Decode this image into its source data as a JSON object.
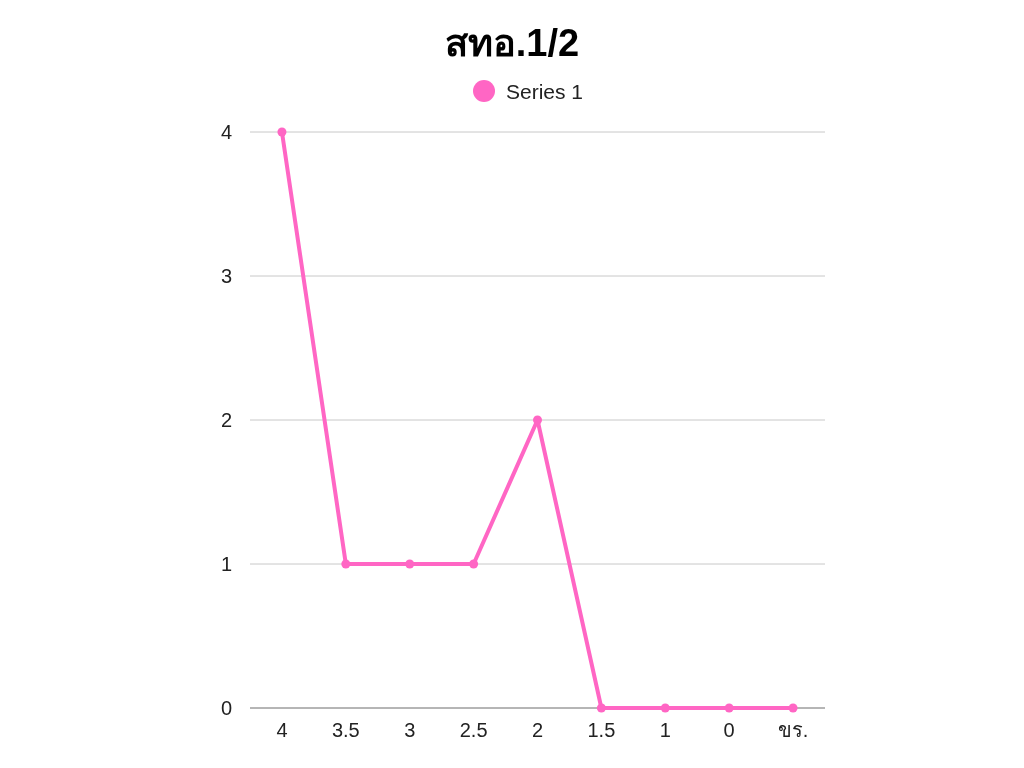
{
  "chart_data": {
    "type": "line",
    "title": "สทอ.1/2",
    "categories": [
      "4",
      "3.5",
      "3",
      "2.5",
      "2",
      "1.5",
      "1",
      "0",
      "ขร."
    ],
    "series": [
      {
        "name": "Series 1",
        "color": "#ff66c4",
        "values": [
          4,
          1,
          1,
          1,
          2,
          0,
          0,
          0,
          0
        ]
      }
    ],
    "ylim": [
      0,
      4
    ],
    "yticks": [
      0,
      1,
      2,
      3,
      4
    ],
    "grid": "y",
    "legend": "top",
    "marker": "circle",
    "line_style": "solid"
  }
}
